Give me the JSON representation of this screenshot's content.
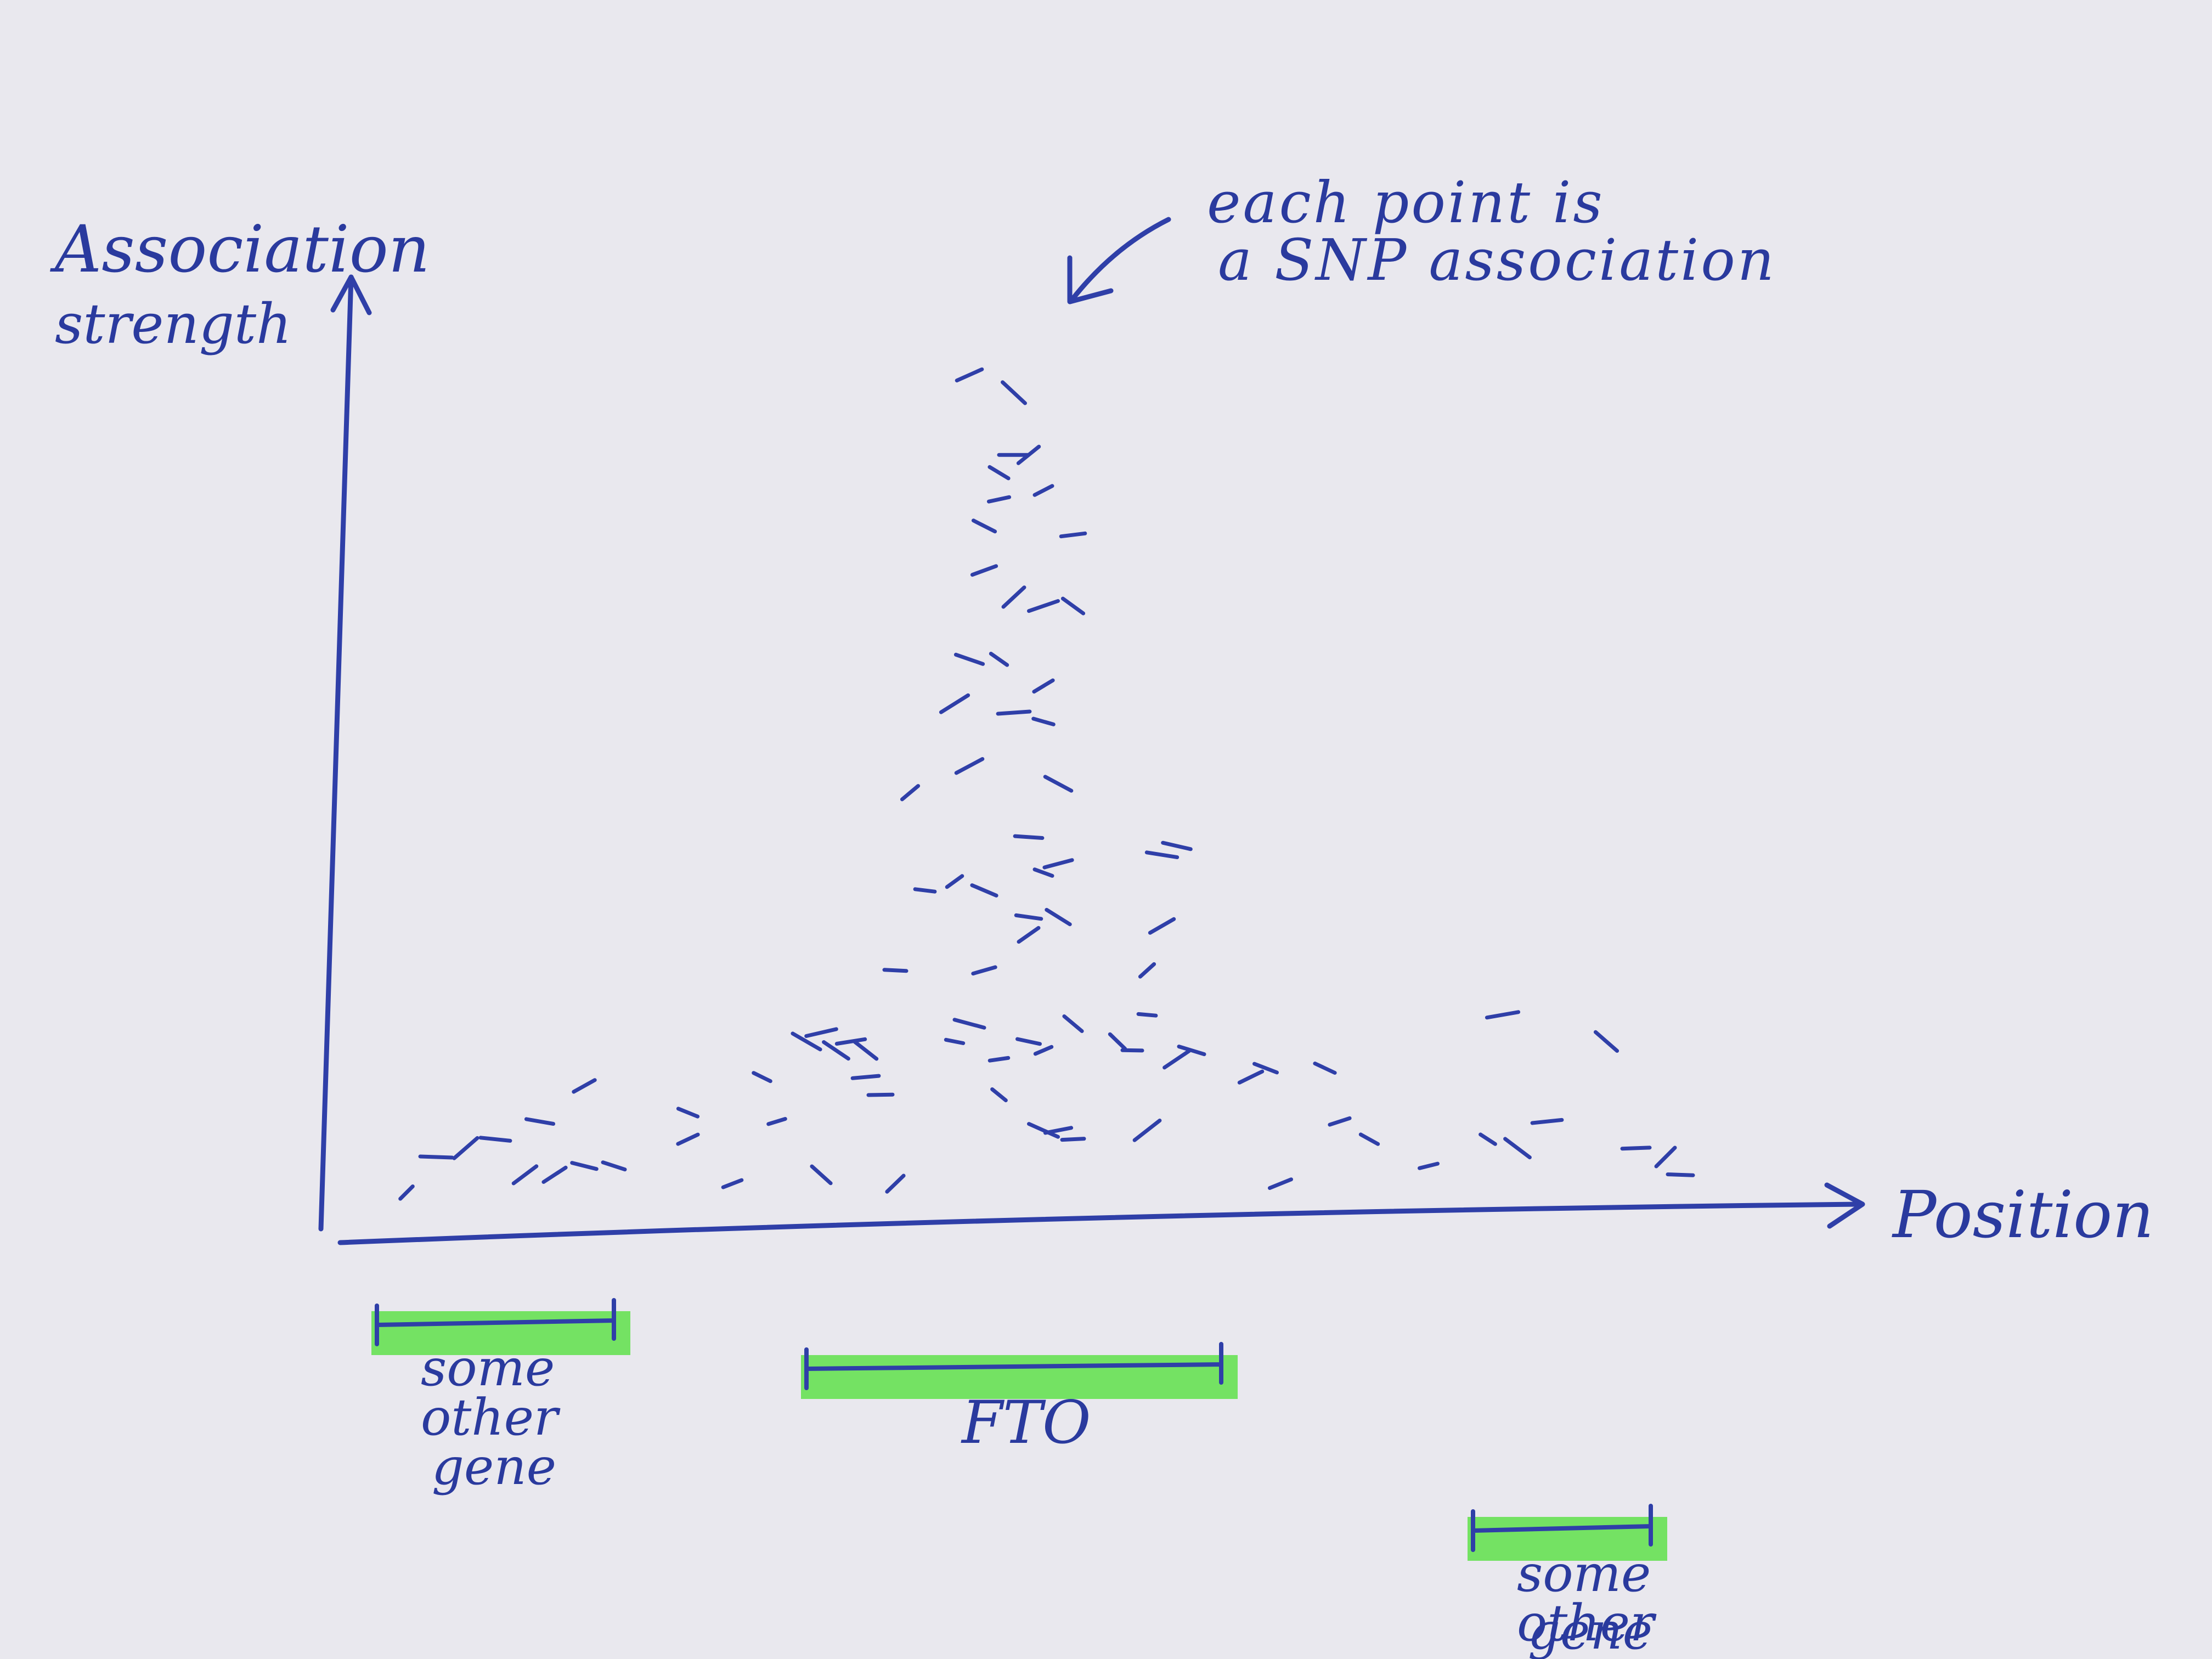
{
  "chart_data": {
    "type": "scatter",
    "title": "",
    "xlabel": "Position",
    "ylabel_lines": [
      "Association",
      "strength"
    ],
    "annotation_lines": [
      "each point is",
      "a SNP association"
    ],
    "xlim": [
      0,
      100
    ],
    "ylim": [
      0,
      100
    ],
    "grid": false,
    "axis_ticks": false,
    "colors": {
      "ink": "#2f3fa8",
      "highlight": "#5fe04a",
      "paper": "#e9e8ee"
    },
    "points": [
      {
        "x": 3,
        "y": 1
      },
      {
        "x": 5,
        "y": 5
      },
      {
        "x": 7,
        "y": 6
      },
      {
        "x": 9,
        "y": 7
      },
      {
        "x": 11,
        "y": 3
      },
      {
        "x": 12,
        "y": 9
      },
      {
        "x": 13,
        "y": 3
      },
      {
        "x": 15,
        "y": 4
      },
      {
        "x": 15,
        "y": 13
      },
      {
        "x": 17,
        "y": 4
      },
      {
        "x": 22,
        "y": 7
      },
      {
        "x": 22,
        "y": 10
      },
      {
        "x": 25,
        "y": 2
      },
      {
        "x": 27,
        "y": 14
      },
      {
        "x": 28,
        "y": 9
      },
      {
        "x": 30,
        "y": 18
      },
      {
        "x": 31,
        "y": 19
      },
      {
        "x": 32,
        "y": 17
      },
      {
        "x": 33,
        "y": 18
      },
      {
        "x": 34,
        "y": 17
      },
      {
        "x": 34,
        "y": 14
      },
      {
        "x": 31,
        "y": 3
      },
      {
        "x": 35,
        "y": 12
      },
      {
        "x": 36,
        "y": 2
      },
      {
        "x": 36,
        "y": 26
      },
      {
        "x": 37,
        "y": 46
      },
      {
        "x": 38,
        "y": 35
      },
      {
        "x": 40,
        "y": 36
      },
      {
        "x": 40,
        "y": 18
      },
      {
        "x": 40,
        "y": 56
      },
      {
        "x": 41,
        "y": 20
      },
      {
        "x": 41,
        "y": 49
      },
      {
        "x": 41,
        "y": 61
      },
      {
        "x": 41,
        "y": 93
      },
      {
        "x": 42,
        "y": 35
      },
      {
        "x": 42,
        "y": 71
      },
      {
        "x": 42,
        "y": 76
      },
      {
        "x": 42,
        "y": 26
      },
      {
        "x": 43,
        "y": 82
      },
      {
        "x": 43,
        "y": 79
      },
      {
        "x": 43,
        "y": 61
      },
      {
        "x": 43,
        "y": 16
      },
      {
        "x": 43,
        "y": 12
      },
      {
        "x": 44,
        "y": 55
      },
      {
        "x": 44,
        "y": 91
      },
      {
        "x": 44,
        "y": 84
      },
      {
        "x": 44,
        "y": 68
      },
      {
        "x": 45,
        "y": 41
      },
      {
        "x": 45,
        "y": 84
      },
      {
        "x": 45,
        "y": 32
      },
      {
        "x": 45,
        "y": 30
      },
      {
        "x": 45,
        "y": 18
      },
      {
        "x": 46,
        "y": 58
      },
      {
        "x": 46,
        "y": 54
      },
      {
        "x": 46,
        "y": 80
      },
      {
        "x": 46,
        "y": 37
      },
      {
        "x": 46,
        "y": 17
      },
      {
        "x": 46,
        "y": 8
      },
      {
        "x": 46,
        "y": 67
      },
      {
        "x": 47,
        "y": 47
      },
      {
        "x": 47,
        "y": 38
      },
      {
        "x": 47,
        "y": 32
      },
      {
        "x": 47,
        "y": 8
      },
      {
        "x": 48,
        "y": 67
      },
      {
        "x": 48,
        "y": 75
      },
      {
        "x": 48,
        "y": 20
      },
      {
        "x": 48,
        "y": 7
      },
      {
        "x": 51,
        "y": 18
      },
      {
        "x": 52,
        "y": 17
      },
      {
        "x": 53,
        "y": 26
      },
      {
        "x": 53,
        "y": 21
      },
      {
        "x": 53,
        "y": 8
      },
      {
        "x": 54,
        "y": 39
      },
      {
        "x": 55,
        "y": 16
      },
      {
        "x": 55,
        "y": 40
      },
      {
        "x": 54,
        "y": 31
      },
      {
        "x": 56,
        "y": 17
      },
      {
        "x": 60,
        "y": 14
      },
      {
        "x": 61,
        "y": 15
      },
      {
        "x": 62,
        "y": 2
      },
      {
        "x": 65,
        "y": 15
      },
      {
        "x": 66,
        "y": 9
      },
      {
        "x": 68,
        "y": 7
      },
      {
        "x": 72,
        "y": 4
      },
      {
        "x": 76,
        "y": 7
      },
      {
        "x": 77,
        "y": 21
      },
      {
        "x": 78,
        "y": 6
      },
      {
        "x": 80,
        "y": 9
      },
      {
        "x": 84,
        "y": 18
      },
      {
        "x": 86,
        "y": 6
      },
      {
        "x": 88,
        "y": 5
      },
      {
        "x": 89,
        "y": 3
      }
    ],
    "genes": [
      {
        "label_lines": [
          "some",
          "other",
          "gene"
        ],
        "x_start": 1,
        "x_end": 17,
        "row": 0
      },
      {
        "label_lines": [
          "FTO"
        ],
        "x_start": 30,
        "x_end": 58,
        "row": 1
      },
      {
        "label_lines": [
          "some",
          "other",
          "gene"
        ],
        "x_start": 75,
        "x_end": 87,
        "row": 2
      }
    ]
  }
}
